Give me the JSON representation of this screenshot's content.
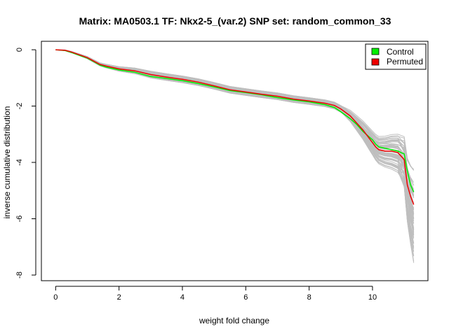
{
  "chart_data": {
    "type": "line",
    "title": "Matrix: MA0503.1 TF: Nkx2-5_(var.2) SNP set: random_common_33",
    "xlabel": "weight fold change",
    "ylabel": "inverse cumulative distribution",
    "xlim": [
      -0.45,
      11.75
    ],
    "ylim": [
      -8.2,
      0.3
    ],
    "xticks": [
      0,
      2,
      4,
      6,
      8,
      10
    ],
    "yticks": [
      0,
      -2,
      -4,
      -6,
      -8
    ],
    "grid": false,
    "legend_position": "top-right",
    "background_series": {
      "color": "#bebebe",
      "count": 60,
      "description_from_image": "many permutation curves drawn in gray"
    },
    "series": [
      {
        "name": "Control",
        "color": "#00ee00",
        "x": [
          0,
          0.3,
          0.5,
          0.8,
          1.0,
          1.2,
          1.4,
          1.6,
          2.0,
          2.5,
          3.0,
          3.5,
          4.0,
          4.5,
          5.0,
          5.5,
          6.0,
          6.5,
          7.0,
          7.5,
          8.0,
          8.5,
          8.8,
          9.0,
          9.3,
          9.5,
          9.7,
          9.9,
          10.0,
          10.1,
          10.2,
          10.4,
          10.6,
          10.8,
          11.0,
          11.1,
          11.2,
          11.3
        ],
        "y": [
          0,
          -0.03,
          -0.1,
          -0.22,
          -0.3,
          -0.42,
          -0.55,
          -0.62,
          -0.72,
          -0.8,
          -0.95,
          -1.02,
          -1.1,
          -1.2,
          -1.32,
          -1.45,
          -1.52,
          -1.6,
          -1.7,
          -1.78,
          -1.85,
          -1.95,
          -2.05,
          -2.2,
          -2.45,
          -2.65,
          -2.9,
          -3.1,
          -3.2,
          -3.35,
          -3.45,
          -3.5,
          -3.55,
          -3.6,
          -3.7,
          -4.3,
          -4.8,
          -5.05
        ]
      },
      {
        "name": "Permuted",
        "color": "#ee0000",
        "x": [
          0,
          0.3,
          0.5,
          0.8,
          1.0,
          1.2,
          1.4,
          1.6,
          2.0,
          2.5,
          3.0,
          3.5,
          4.0,
          4.5,
          5.0,
          5.5,
          6.0,
          6.5,
          7.0,
          7.5,
          8.0,
          8.5,
          8.8,
          9.0,
          9.3,
          9.5,
          9.7,
          9.9,
          10.0,
          10.1,
          10.2,
          10.4,
          10.6,
          10.8,
          11.0,
          11.1,
          11.2,
          11.3
        ],
        "y": [
          0,
          -0.02,
          -0.08,
          -0.2,
          -0.28,
          -0.4,
          -0.52,
          -0.58,
          -0.68,
          -0.75,
          -0.88,
          -0.97,
          -1.05,
          -1.15,
          -1.28,
          -1.42,
          -1.5,
          -1.58,
          -1.65,
          -1.75,
          -1.82,
          -1.9,
          -1.98,
          -2.1,
          -2.35,
          -2.6,
          -2.85,
          -3.15,
          -3.3,
          -3.45,
          -3.55,
          -3.6,
          -3.6,
          -3.65,
          -3.9,
          -4.8,
          -5.2,
          -5.5
        ]
      }
    ]
  }
}
